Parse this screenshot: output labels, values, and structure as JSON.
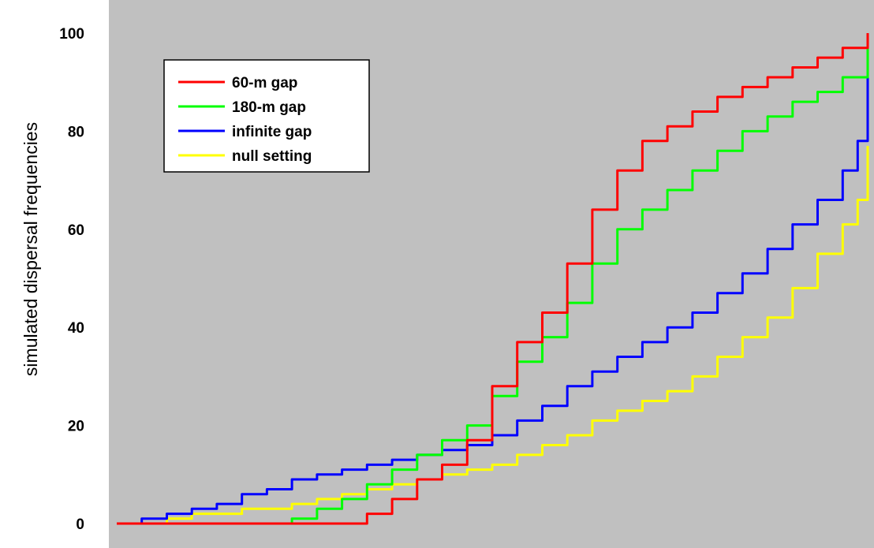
{
  "chart_data": {
    "type": "line",
    "title": "",
    "xlabel": "",
    "ylabel": "simulated dispersal frequencies",
    "ylim": [
      0,
      100
    ],
    "xlim": [
      0,
      150
    ],
    "yticks": [
      0,
      20,
      40,
      60,
      80,
      100
    ],
    "grid": false,
    "legend_position": "top-left",
    "plot_background": "#c0c0c0",
    "series": [
      {
        "name": "60-m gap",
        "color": "#ff0000",
        "x": [
          0,
          5,
          10,
          15,
          20,
          25,
          30,
          35,
          40,
          45,
          47,
          50,
          55,
          60,
          65,
          70,
          75,
          80,
          85,
          90,
          95,
          100,
          105,
          110,
          115,
          120,
          125,
          130,
          135,
          140,
          145,
          150
        ],
        "y": [
          0,
          0,
          0,
          0,
          0,
          0,
          0,
          0,
          0,
          0,
          0,
          2,
          5,
          9,
          12,
          17,
          28,
          37,
          43,
          53,
          64,
          72,
          78,
          81,
          84,
          87,
          89,
          91,
          93,
          95,
          97,
          100
        ]
      },
      {
        "name": "180-m gap",
        "color": "#00ff00",
        "x": [
          0,
          5,
          10,
          15,
          20,
          25,
          30,
          35,
          40,
          45,
          50,
          55,
          60,
          65,
          70,
          75,
          80,
          85,
          90,
          95,
          100,
          105,
          110,
          115,
          120,
          125,
          130,
          135,
          140,
          145,
          150
        ],
        "y": [
          0,
          0,
          0,
          0,
          0,
          0,
          0,
          1,
          3,
          5,
          8,
          11,
          14,
          17,
          20,
          26,
          33,
          38,
          45,
          53,
          60,
          64,
          68,
          72,
          76,
          80,
          83,
          86,
          88,
          91,
          97
        ]
      },
      {
        "name": "infinite gap",
        "color": "#0000ff",
        "x": [
          2,
          5,
          10,
          15,
          20,
          25,
          30,
          35,
          40,
          45,
          50,
          55,
          60,
          65,
          70,
          75,
          80,
          85,
          90,
          95,
          100,
          105,
          110,
          115,
          120,
          125,
          130,
          135,
          140,
          145,
          148,
          150
        ],
        "y": [
          0,
          1,
          2,
          3,
          4,
          6,
          7,
          9,
          10,
          11,
          12,
          13,
          14,
          15,
          16,
          18,
          21,
          24,
          28,
          31,
          34,
          37,
          40,
          43,
          47,
          51,
          56,
          61,
          66,
          72,
          78,
          91
        ]
      },
      {
        "name": "null setting",
        "color": "#ffff00",
        "x": [
          0,
          5,
          10,
          15,
          20,
          25,
          30,
          35,
          40,
          45,
          50,
          55,
          60,
          65,
          70,
          75,
          80,
          85,
          90,
          95,
          100,
          105,
          110,
          115,
          120,
          125,
          130,
          135,
          140,
          145,
          148,
          150
        ],
        "y": [
          0,
          0,
          1,
          2,
          2,
          3,
          3,
          4,
          5,
          6,
          7,
          8,
          9,
          10,
          11,
          12,
          14,
          16,
          18,
          21,
          23,
          25,
          27,
          30,
          34,
          38,
          42,
          48,
          55,
          61,
          66,
          77
        ]
      }
    ]
  }
}
